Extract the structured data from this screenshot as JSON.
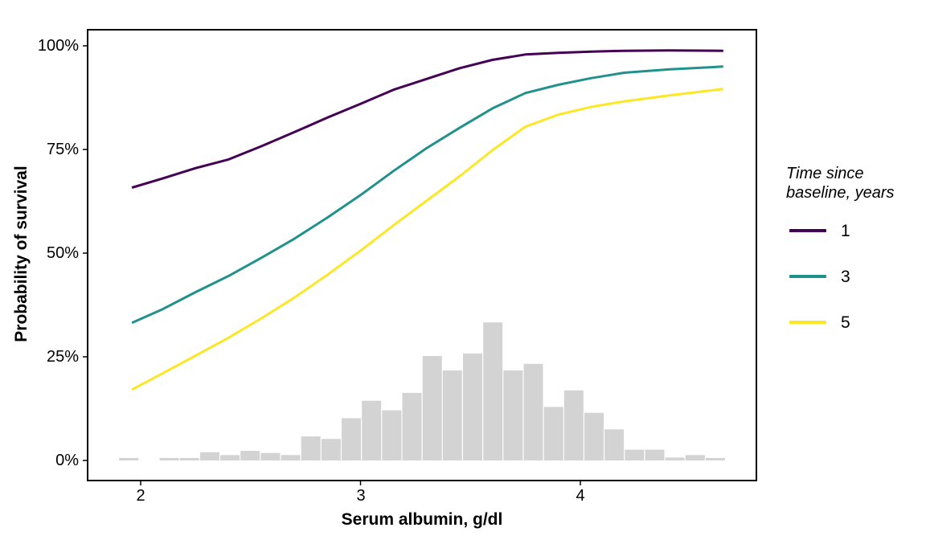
{
  "figure": {
    "y_axis_title": "Probability of survival",
    "x_axis_title": "Serum albumin, g/dl",
    "legend": {
      "title_line1": "Time since",
      "title_line2": "baseline, years",
      "items": [
        {
          "label": "1",
          "color": "#440154"
        },
        {
          "label": "3",
          "color": "#21918C"
        },
        {
          "label": "5",
          "color": "#FDE725"
        }
      ]
    }
  },
  "chart_data": {
    "type": "line",
    "title": "",
    "xlabel": "Serum albumin, g/dl",
    "ylabel": "Probability of survival",
    "xlim": [
      1.76,
      4.8
    ],
    "ylim_pct": [
      -4.8,
      103.9
    ],
    "grid": false,
    "legend_title": "Time since baseline, years",
    "legend_position": "right",
    "x_ticks": [
      2,
      3,
      4
    ],
    "x_tick_labels": [
      "2",
      "3",
      "4"
    ],
    "y_ticks_pct": [
      0,
      25,
      50,
      75,
      100
    ],
    "y_tick_labels": [
      "0%",
      "25%",
      "50%",
      "75%",
      "100%"
    ],
    "series": [
      {
        "name": "1",
        "color": "#440154",
        "x": [
          1.96,
          2.1,
          2.25,
          2.4,
          2.55,
          2.7,
          2.85,
          3.0,
          3.15,
          3.3,
          3.45,
          3.6,
          3.75,
          3.9,
          4.05,
          4.2,
          4.4,
          4.65
        ],
        "y_pct": [
          65.8,
          68.0,
          70.5,
          72.6,
          75.8,
          79.2,
          82.7,
          86.0,
          89.4,
          92.0,
          94.6,
          96.6,
          97.9,
          98.3,
          98.6,
          98.8,
          98.9,
          98.8
        ]
      },
      {
        "name": "3",
        "color": "#21918C",
        "x": [
          1.96,
          2.1,
          2.25,
          2.4,
          2.55,
          2.7,
          2.85,
          3.0,
          3.15,
          3.3,
          3.45,
          3.6,
          3.75,
          3.9,
          4.05,
          4.2,
          4.4,
          4.65
        ],
        "y_pct": [
          33.2,
          36.5,
          40.6,
          44.5,
          48.9,
          53.5,
          58.6,
          64.0,
          69.8,
          75.3,
          80.2,
          84.9,
          88.6,
          90.6,
          92.2,
          93.5,
          94.3,
          95.0
        ]
      },
      {
        "name": "5",
        "color": "#FDE725",
        "x": [
          1.96,
          2.1,
          2.25,
          2.4,
          2.55,
          2.7,
          2.85,
          3.0,
          3.15,
          3.3,
          3.45,
          3.6,
          3.75,
          3.9,
          4.05,
          4.2,
          4.4,
          4.65
        ],
        "y_pct": [
          17.1,
          21.0,
          25.3,
          29.6,
          34.3,
          39.3,
          44.8,
          50.6,
          56.7,
          62.6,
          68.5,
          74.8,
          80.5,
          83.4,
          85.3,
          86.6,
          88.0,
          89.6
        ]
      }
    ],
    "histogram": {
      "type": "bar",
      "fill": "#D3D3D3",
      "bin_start": 1.9,
      "bin_width": 0.092,
      "heights_pct": [
        0.6,
        0,
        0.6,
        0.6,
        2.0,
        1.3,
        2.3,
        1.8,
        1.3,
        5.8,
        5.2,
        10.2,
        14.4,
        12.1,
        16.3,
        25.2,
        21.7,
        25.8,
        33.3,
        21.7,
        23.3,
        12.9,
        16.9,
        11.5,
        7.5,
        2.6,
        2.6,
        0.7,
        1.3,
        0.6
      ]
    }
  }
}
